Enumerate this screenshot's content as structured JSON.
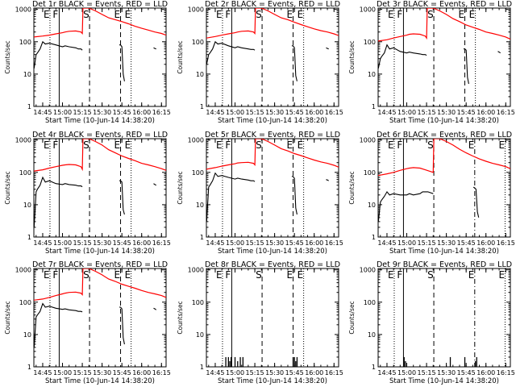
{
  "page": {
    "background": "#ffffff",
    "axis_color": "#000000"
  },
  "shared": {
    "xlabel": "Start Time (10-Jun-14 14:38:20)",
    "ylabel": "Counts/sec",
    "x_tick_labels": [
      "14:45",
      "15:00",
      "15:15",
      "15:30",
      "15:45",
      "16:00",
      "16:15"
    ],
    "x_tick_minutes": [
      45,
      60,
      75,
      90,
      105,
      120,
      135
    ],
    "xlim_minutes": [
      38.3,
      138.5
    ],
    "y_tick_labels": [
      "1",
      "10",
      "100",
      "1000"
    ],
    "y_tick_values": [
      1,
      10,
      100,
      1000
    ],
    "ylim": [
      1,
      1100
    ],
    "y_scale": "log",
    "series_colors": {
      "events": "#000000",
      "lld": "#ff0000"
    },
    "markers": [
      {
        "label": "E",
        "minute": 50.5,
        "style": "dotted"
      },
      {
        "label": "F",
        "minute": 57.5,
        "style": "solid"
      },
      {
        "label": "S",
        "minute": 80.5,
        "style": "dashed"
      },
      {
        "label": "E",
        "minute": 104.0,
        "style": "dashed"
      },
      {
        "label": "E",
        "minute": 112.0,
        "style": "dotted"
      }
    ],
    "markers_alt": [
      {
        "label": "E",
        "minute": 50.5,
        "style": "dotted"
      },
      {
        "label": "F",
        "minute": 57.5,
        "style": "solid"
      },
      {
        "label": "S",
        "minute": 80.5,
        "style": "dashed"
      },
      {
        "label": "E",
        "minute": 111.5,
        "style": "dashdot"
      },
      {
        "label": "E",
        "minute": 134.5,
        "style": "dotted"
      }
    ]
  },
  "chart_data": [
    {
      "type": "line",
      "title": "Det 1r BLACK = Events, RED = LLD",
      "marker_set": "main",
      "series": [
        {
          "key": "lld",
          "x": [
            38.3,
            45,
            50,
            55,
            60,
            62,
            65,
            70,
            74,
            75,
            75.5,
            80,
            85,
            90,
            95,
            100,
            105,
            110,
            115,
            120,
            125,
            130,
            135,
            138.5
          ],
          "y": [
            140,
            150,
            160,
            175,
            190,
            200,
            210,
            215,
            200,
            180,
            1100,
            1100,
            900,
            700,
            550,
            480,
            420,
            360,
            300,
            260,
            230,
            200,
            180,
            160
          ]
        },
        {
          "key": "events",
          "segments": [
            {
              "x": [
                38.5,
                40,
                41,
                43,
                45,
                47,
                50,
                55,
                60,
                62,
                65,
                70,
                72,
                74,
                75
              ],
              "y": [
                15,
                40,
                45,
                60,
                100,
                85,
                90,
                80,
                70,
                75,
                70,
                65,
                60,
                60,
                55
              ]
            },
            {
              "x": [
                103,
                104,
                105,
                106,
                107
              ],
              "y": [
                80,
                80,
                70,
                10,
                6
              ]
            },
            {
              "x": [
                129,
                130,
                131
              ],
              "y": [
                65,
                62,
                60
              ]
            }
          ]
        }
      ]
    },
    {
      "type": "line",
      "title": "Det 2r BLACK = Events, RED = LLD",
      "marker_set": "main",
      "series": [
        {
          "key": "lld",
          "x": [
            38.3,
            45,
            50,
            55,
            60,
            62,
            65,
            70,
            74,
            75,
            75.5,
            80,
            85,
            90,
            95,
            100,
            105,
            110,
            115,
            120,
            125,
            130,
            135,
            138.5
          ],
          "y": [
            130,
            145,
            160,
            175,
            190,
            200,
            210,
            215,
            200,
            180,
            1100,
            1100,
            900,
            700,
            550,
            480,
            400,
            340,
            290,
            250,
            220,
            200,
            175,
            155
          ]
        },
        {
          "key": "events",
          "segments": [
            {
              "x": [
                38.5,
                40,
                41,
                43,
                45,
                47,
                50,
                55,
                60,
                62,
                65,
                70,
                72,
                74,
                75
              ],
              "y": [
                20,
                40,
                45,
                60,
                100,
                85,
                90,
                75,
                65,
                70,
                65,
                60,
                58,
                58,
                55
              ]
            },
            {
              "x": [
                103,
                104,
                105,
                106,
                107
              ],
              "y": [
                75,
                75,
                65,
                9,
                6
              ]
            },
            {
              "x": [
                129,
                130,
                131
              ],
              "y": [
                65,
                62,
                60
              ]
            }
          ]
        }
      ]
    },
    {
      "type": "line",
      "title": "Det 3r BLACK = Events, RED = LLD",
      "marker_set": "main",
      "series": [
        {
          "key": "lld",
          "x": [
            38.3,
            45,
            50,
            55,
            60,
            62,
            65,
            70,
            74,
            75,
            75.5,
            80,
            85,
            90,
            95,
            100,
            105,
            110,
            115,
            120,
            125,
            130,
            135,
            138.5
          ],
          "y": [
            105,
            115,
            130,
            145,
            160,
            170,
            175,
            170,
            150,
            130,
            1100,
            1100,
            900,
            700,
            520,
            420,
            330,
            280,
            240,
            200,
            180,
            160,
            140,
            120
          ]
        },
        {
          "key": "events",
          "segments": [
            {
              "x": [
                38.5,
                40,
                41,
                43,
                45,
                47,
                50,
                55,
                60,
                62,
                65,
                70,
                72,
                74,
                75
              ],
              "y": [
                15,
                30,
                35,
                45,
                80,
                60,
                65,
                50,
                45,
                48,
                45,
                42,
                40,
                40,
                38
              ]
            },
            {
              "x": [
                103,
                104,
                105,
                106,
                107
              ],
              "y": [
                60,
                60,
                55,
                8,
                5
              ]
            },
            {
              "x": [
                129,
                130,
                131
              ],
              "y": [
                50,
                48,
                45
              ]
            }
          ]
        }
      ]
    },
    {
      "type": "line",
      "title": "Det 4r BLACK = Events, RED = LLD",
      "marker_set": "main",
      "series": [
        {
          "key": "lld",
          "x": [
            38.3,
            45,
            50,
            55,
            60,
            62,
            65,
            70,
            74,
            75,
            75.5,
            80,
            85,
            90,
            95,
            100,
            105,
            110,
            115,
            120,
            125,
            130,
            135,
            138.5
          ],
          "y": [
            110,
            120,
            135,
            150,
            165,
            170,
            175,
            170,
            150,
            125,
            1100,
            1100,
            900,
            700,
            500,
            400,
            320,
            270,
            230,
            190,
            170,
            150,
            130,
            115
          ]
        },
        {
          "key": "events",
          "segments": [
            {
              "x": [
                38.5,
                40,
                41,
                43,
                45,
                47,
                50,
                55,
                60,
                62,
                65,
                70,
                72,
                74,
                75
              ],
              "y": [
                2,
                25,
                30,
                40,
                70,
                50,
                55,
                45,
                42,
                45,
                42,
                40,
                38,
                38,
                36
              ]
            },
            {
              "x": [
                103,
                104,
                105,
                106,
                107
              ],
              "y": [
                55,
                55,
                50,
                7,
                5
              ]
            },
            {
              "x": [
                129,
                130,
                131
              ],
              "y": [
                45,
                42,
                40
              ]
            }
          ]
        }
      ]
    },
    {
      "type": "line",
      "title": "Det 5r BLACK = Events, RED = LLD",
      "marker_set": "main",
      "series": [
        {
          "key": "lld",
          "x": [
            38.3,
            45,
            50,
            55,
            60,
            62,
            65,
            70,
            74,
            75,
            75.5,
            80,
            85,
            90,
            95,
            100,
            105,
            110,
            115,
            120,
            125,
            130,
            135,
            138.5
          ],
          "y": [
            125,
            140,
            155,
            170,
            185,
            195,
            200,
            205,
            190,
            170,
            1100,
            1100,
            900,
            700,
            540,
            460,
            380,
            330,
            280,
            240,
            210,
            190,
            165,
            145
          ]
        },
        {
          "key": "events",
          "segments": [
            {
              "x": [
                38.5,
                40,
                41,
                43,
                45,
                47,
                50,
                55,
                60,
                62,
                65,
                70,
                72,
                74,
                75
              ],
              "y": [
                3,
                35,
                40,
                55,
                95,
                75,
                80,
                70,
                62,
                66,
                62,
                58,
                55,
                55,
                52
              ]
            },
            {
              "x": [
                103,
                104,
                105,
                106,
                107
              ],
              "y": [
                75,
                75,
                65,
                8,
                5
              ]
            },
            {
              "x": [
                129,
                130,
                131
              ],
              "y": [
                60,
                58,
                55
              ]
            }
          ]
        }
      ]
    },
    {
      "type": "line",
      "title": "Det 6r BLACK = Events, RED = LLD",
      "marker_set": "alt",
      "series": [
        {
          "key": "lld",
          "x": [
            38.3,
            45,
            50,
            55,
            60,
            62,
            65,
            70,
            74,
            80,
            80.5,
            85,
            90,
            95,
            100,
            105,
            110,
            115,
            120,
            125,
            130,
            135,
            138.5
          ],
          "y": [
            80,
            90,
            100,
            115,
            130,
            135,
            140,
            135,
            120,
            100,
            1100,
            1100,
            900,
            700,
            520,
            400,
            320,
            260,
            220,
            190,
            170,
            150,
            130
          ]
        },
        {
          "key": "events",
          "segments": [
            {
              "x": [
                38.5,
                40,
                41,
                43,
                45,
                47,
                50,
                55,
                60,
                62,
                65,
                70,
                72,
                76,
                80
              ],
              "y": [
                3,
                12,
                14,
                18,
                25,
                20,
                22,
                20,
                20,
                22,
                20,
                22,
                25,
                25,
                22
              ]
            },
            {
              "x": [
                110.5,
                111.5,
                112.5,
                113.5,
                114.5
              ],
              "y": [
                35,
                33,
                30,
                6,
                4
              ]
            }
          ]
        }
      ]
    },
    {
      "type": "line",
      "title": "Det 7r BLACK = Events, RED = LLD",
      "marker_set": "main",
      "series": [
        {
          "key": "lld",
          "x": [
            38.3,
            45,
            50,
            55,
            60,
            62,
            65,
            70,
            74,
            75,
            75.5,
            80,
            85,
            90,
            95,
            100,
            105,
            110,
            115,
            120,
            125,
            130,
            135,
            138.5
          ],
          "y": [
            115,
            125,
            140,
            160,
            180,
            190,
            200,
            205,
            190,
            170,
            1100,
            1100,
            900,
            700,
            520,
            440,
            360,
            310,
            270,
            230,
            200,
            180,
            160,
            140
          ]
        },
        {
          "key": "events",
          "segments": [
            {
              "x": [
                38.5,
                40,
                41,
                43,
                45,
                47,
                50,
                55,
                60,
                62,
                65,
                70,
                72,
                74,
                75
              ],
              "y": [
                4,
                35,
                40,
                52,
                90,
                70,
                75,
                65,
                60,
                62,
                58,
                55,
                52,
                52,
                50
              ]
            },
            {
              "x": [
                103,
                104,
                105,
                106,
                107
              ],
              "y": [
                70,
                70,
                62,
                8,
                5
              ]
            },
            {
              "x": [
                129,
                130,
                131
              ],
              "y": [
                65,
                62,
                58
              ]
            }
          ]
        }
      ]
    },
    {
      "type": "line",
      "title": "Det 8r BLACK = Events, RED = LLD",
      "marker_set": "main",
      "series": [
        {
          "key": "events",
          "spikes": [
            {
              "x": 53,
              "y": 2
            },
            {
              "x": 55,
              "y": 2
            },
            {
              "x": 56,
              "y": 1.5
            },
            {
              "x": 57,
              "y": 2
            },
            {
              "x": 60,
              "y": 2
            },
            {
              "x": 62,
              "y": 1.5
            },
            {
              "x": 64,
              "y": 2
            },
            {
              "x": 66,
              "y": 2
            },
            {
              "x": 104,
              "y": 2
            },
            {
              "x": 105,
              "y": 2
            },
            {
              "x": 106,
              "y": 1.5
            },
            {
              "x": 107,
              "y": 2
            }
          ]
        }
      ]
    },
    {
      "type": "line",
      "title": "Det 9r BLACK = Events, RED = LLD",
      "marker_set": "alt",
      "series": [
        {
          "key": "events",
          "spikes": [
            {
              "x": 58,
              "y": 2
            },
            {
              "x": 59,
              "y": 1.5
            },
            {
              "x": 93,
              "y": 2
            },
            {
              "x": 104,
              "y": 2
            },
            {
              "x": 112,
              "y": 1.5
            },
            {
              "x": 113,
              "y": 2
            }
          ]
        }
      ]
    }
  ]
}
